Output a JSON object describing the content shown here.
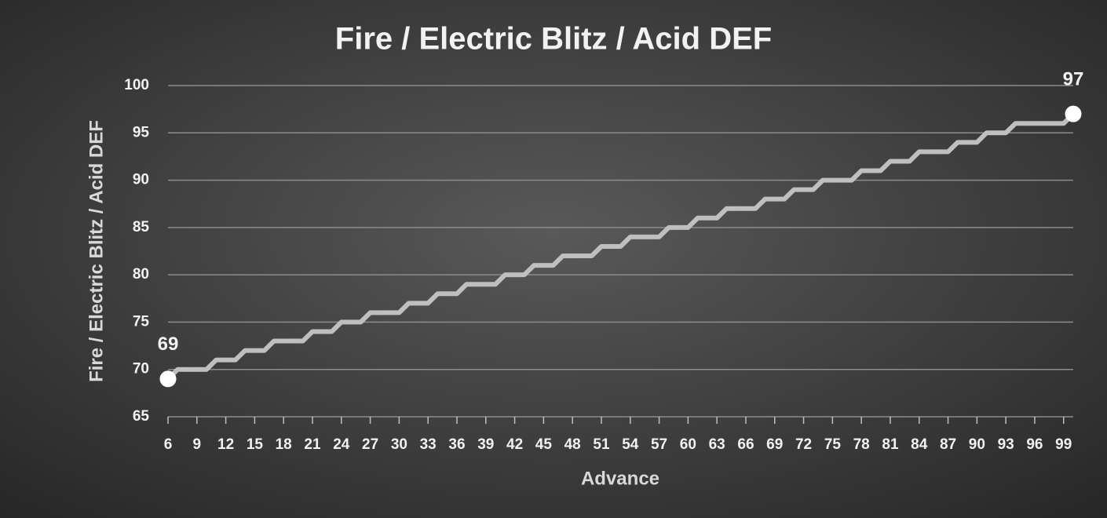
{
  "chart_data": {
    "type": "line",
    "title": "Fire / Electric Blitz / Acid DEF",
    "x_label": "Advance",
    "y_label": "Fire / Electric Blitz / Acid DEF",
    "x": [
      6,
      7,
      8,
      9,
      10,
      11,
      12,
      13,
      14,
      15,
      16,
      17,
      18,
      19,
      20,
      21,
      22,
      23,
      24,
      25,
      26,
      27,
      28,
      29,
      30,
      31,
      32,
      33,
      34,
      35,
      36,
      37,
      38,
      39,
      40,
      41,
      42,
      43,
      44,
      45,
      46,
      47,
      48,
      49,
      50,
      51,
      52,
      53,
      54,
      55,
      56,
      57,
      58,
      59,
      60,
      61,
      62,
      63,
      64,
      65,
      66,
      67,
      68,
      69,
      70,
      71,
      72,
      73,
      74,
      75,
      76,
      77,
      78,
      79,
      80,
      81,
      82,
      83,
      84,
      85,
      86,
      87,
      88,
      89,
      90,
      91,
      92,
      93,
      94,
      95,
      96,
      97,
      98,
      99,
      100
    ],
    "values": [
      69,
      70,
      70,
      70,
      70,
      71,
      71,
      71,
      72,
      72,
      72,
      73,
      73,
      73,
      73,
      74,
      74,
      74,
      75,
      75,
      75,
      76,
      76,
      76,
      76,
      77,
      77,
      77,
      78,
      78,
      78,
      79,
      79,
      79,
      79,
      80,
      80,
      80,
      81,
      81,
      81,
      82,
      82,
      82,
      82,
      83,
      83,
      83,
      84,
      84,
      84,
      84,
      85,
      85,
      85,
      86,
      86,
      86,
      87,
      87,
      87,
      87,
      88,
      88,
      88,
      89,
      89,
      89,
      90,
      90,
      90,
      90,
      91,
      91,
      91,
      92,
      92,
      92,
      93,
      93,
      93,
      93,
      94,
      94,
      94,
      95,
      95,
      95,
      96,
      96,
      96,
      96,
      96,
      96,
      97
    ],
    "color": "#bfbfbf",
    "xlim": [
      6,
      100
    ],
    "xticks": [
      6,
      9,
      12,
      15,
      18,
      21,
      24,
      27,
      30,
      33,
      36,
      39,
      42,
      45,
      48,
      51,
      54,
      57,
      60,
      63,
      66,
      69,
      72,
      75,
      78,
      81,
      84,
      87,
      90,
      93,
      96,
      99
    ],
    "ylim": [
      65,
      100
    ],
    "yticks": [
      65,
      70,
      75,
      80,
      85,
      90,
      95,
      100
    ],
    "grid": true,
    "show_labels": "ends"
  }
}
